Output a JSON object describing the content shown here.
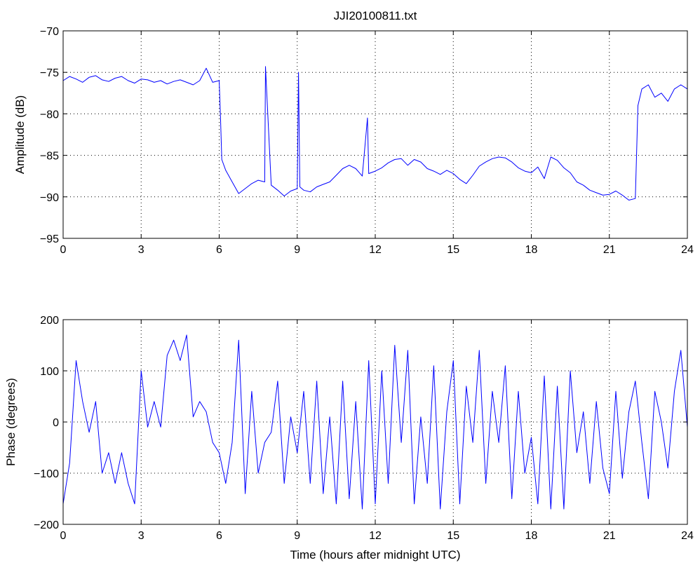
{
  "page": {
    "background": "#ffffff",
    "line_color": "#0000ff",
    "axis_color": "#000000"
  },
  "chart_data": [
    {
      "type": "line",
      "title": "JJI20100811.txt",
      "xlabel": "",
      "ylabel": "Amplitude (dB)",
      "xlim": [
        0,
        24
      ],
      "ylim": [
        -95,
        -70
      ],
      "xticks": [
        0,
        3,
        6,
        9,
        12,
        15,
        18,
        21,
        24
      ],
      "yticks": [
        -95,
        -90,
        -85,
        -80,
        -75,
        -70
      ],
      "grid": true,
      "series": [
        {
          "color": "#0000ff",
          "x": [
            0,
            0.25,
            0.5,
            0.75,
            1,
            1.25,
            1.5,
            1.75,
            2,
            2.25,
            2.5,
            2.75,
            3,
            3.25,
            3.5,
            3.75,
            4,
            4.25,
            4.5,
            4.75,
            5,
            5.25,
            5.5,
            5.75,
            6,
            6.05,
            6.1,
            6.25,
            6.5,
            6.75,
            7,
            7.25,
            7.5,
            7.75,
            7.78,
            8,
            8.25,
            8.5,
            8.75,
            9,
            9.05,
            9.1,
            9.25,
            9.5,
            9.75,
            10,
            10.25,
            10.5,
            10.75,
            11,
            11.25,
            11.5,
            11.7,
            11.75,
            12,
            12.25,
            12.5,
            12.75,
            13,
            13.25,
            13.5,
            13.75,
            14,
            14.25,
            14.5,
            14.75,
            15,
            15.25,
            15.5,
            15.75,
            16,
            16.25,
            16.5,
            16.75,
            17,
            17.25,
            17.5,
            17.75,
            18,
            18.25,
            18.5,
            18.75,
            19,
            19.25,
            19.5,
            19.75,
            20,
            20.25,
            20.5,
            20.75,
            21,
            21.25,
            21.5,
            21.75,
            22,
            22.1,
            22.25,
            22.5,
            22.75,
            23,
            23.25,
            23.5,
            23.75,
            24
          ],
          "y": [
            -76,
            -75.5,
            -75.8,
            -76.2,
            -75.6,
            -75.4,
            -75.9,
            -76.1,
            -75.7,
            -75.5,
            -76,
            -76.3,
            -75.8,
            -75.9,
            -76.2,
            -76,
            -76.4,
            -76.1,
            -75.9,
            -76.2,
            -76.5,
            -76,
            -74.5,
            -76.2,
            -76,
            -80.5,
            -85.5,
            -86.8,
            -88.2,
            -89.6,
            -89,
            -88.4,
            -88,
            -88.2,
            -74.3,
            -88.6,
            -89.2,
            -89.9,
            -89.3,
            -89,
            -75,
            -88.8,
            -89.2,
            -89.4,
            -88.8,
            -88.5,
            -88.2,
            -87.4,
            -86.6,
            -86.2,
            -86.6,
            -87.5,
            -80.5,
            -87.2,
            -86.9,
            -86.5,
            -85.9,
            -85.5,
            -85.4,
            -86.2,
            -85.5,
            -85.8,
            -86.6,
            -86.9,
            -87.3,
            -86.8,
            -87.2,
            -87.9,
            -88.4,
            -87.4,
            -86.3,
            -85.8,
            -85.4,
            -85.2,
            -85.3,
            -85.8,
            -86.5,
            -86.9,
            -87.1,
            -86.4,
            -87.8,
            -85.2,
            -85.6,
            -86.5,
            -87.1,
            -88.2,
            -88.6,
            -89.2,
            -89.5,
            -89.8,
            -89.7,
            -89.3,
            -89.8,
            -90.4,
            -90.2,
            -79,
            -77,
            -76.5,
            -78,
            -77.5,
            -78.5,
            -77,
            -76.5,
            -77
          ]
        }
      ]
    },
    {
      "type": "line",
      "title": "",
      "xlabel": "Time (hours after midnight UTC)",
      "ylabel": "Phase (degrees)",
      "xlim": [
        0,
        24
      ],
      "ylim": [
        -200,
        200
      ],
      "xticks": [
        0,
        3,
        6,
        9,
        12,
        15,
        18,
        21,
        24
      ],
      "yticks": [
        -200,
        -100,
        0,
        100,
        200
      ],
      "grid": true,
      "series": [
        {
          "color": "#0000ff",
          "x": [
            0,
            0.25,
            0.5,
            0.75,
            1,
            1.25,
            1.5,
            1.75,
            2,
            2.25,
            2.5,
            2.75,
            3,
            3.25,
            3.5,
            3.75,
            4,
            4.25,
            4.5,
            4.75,
            5,
            5.25,
            5.5,
            5.75,
            6,
            6.25,
            6.5,
            6.75,
            7,
            7.25,
            7.5,
            7.75,
            8,
            8.25,
            8.5,
            8.75,
            9,
            9.25,
            9.5,
            9.75,
            10,
            10.25,
            10.5,
            10.75,
            11,
            11.25,
            11.5,
            11.75,
            12,
            12.25,
            12.5,
            12.75,
            13,
            13.25,
            13.5,
            13.75,
            14,
            14.25,
            14.5,
            14.75,
            15,
            15.25,
            15.5,
            15.75,
            16,
            16.25,
            16.5,
            16.75,
            17,
            17.25,
            17.5,
            17.75,
            18,
            18.25,
            18.5,
            18.75,
            19,
            19.25,
            19.5,
            19.75,
            20,
            20.25,
            20.5,
            20.75,
            21,
            21.25,
            21.5,
            21.75,
            22,
            22.25,
            22.5,
            22.75,
            23,
            23.25,
            23.5,
            23.75,
            24
          ],
          "y": [
            -160,
            -80,
            120,
            40,
            -20,
            40,
            -100,
            -60,
            -120,
            -60,
            -120,
            -160,
            100,
            -10,
            40,
            -10,
            130,
            160,
            120,
            170,
            10,
            40,
            20,
            -40,
            -60,
            -120,
            -40,
            160,
            -140,
            60,
            -100,
            -40,
            -20,
            80,
            -120,
            10,
            -60,
            60,
            -120,
            80,
            -140,
            10,
            -160,
            80,
            -150,
            40,
            -170,
            120,
            -160,
            100,
            -120,
            150,
            -40,
            140,
            -160,
            10,
            -120,
            110,
            -170,
            20,
            120,
            -160,
            70,
            -40,
            140,
            -120,
            60,
            -40,
            110,
            -150,
            60,
            -100,
            -30,
            -160,
            90,
            -170,
            70,
            -170,
            100,
            -60,
            20,
            -120,
            40,
            -90,
            -140,
            60,
            -110,
            20,
            80,
            -40,
            -150,
            60,
            0,
            -90,
            60,
            140,
            -10
          ]
        }
      ]
    }
  ]
}
